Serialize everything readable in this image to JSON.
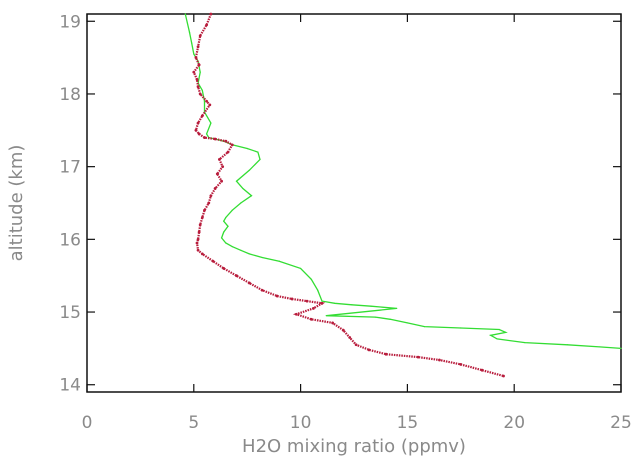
{
  "chart_data": {
    "type": "line",
    "title": "",
    "xlabel": "H2O mixing ratio (ppmv)",
    "ylabel": "altitude (km)",
    "xlim": [
      0,
      25
    ],
    "ylim": [
      13.9,
      19.1
    ],
    "xticks": [
      "0",
      "5",
      "10",
      "15",
      "20",
      "25"
    ],
    "yticks": [
      "14",
      "15",
      "16",
      "17",
      "18",
      "19"
    ],
    "grid": false,
    "legend": "none",
    "series": [
      {
        "color": "#33dd33",
        "style": "line",
        "x": [
          4.6,
          4.8,
          4.9,
          5.0,
          5.2,
          5.3,
          5.2,
          5.4,
          5.5,
          5.5,
          5.8,
          5.6,
          5.7,
          6.0,
          6.4,
          6.8,
          7.5,
          8.0,
          8.1,
          7.6,
          7.0,
          7.3,
          7.7,
          7.2,
          6.8,
          6.5,
          6.4,
          6.6,
          6.4,
          6.3,
          6.5,
          6.8,
          7.2,
          7.6,
          8.2,
          9.0,
          10.0,
          10.5,
          10.8,
          11.0,
          11.6,
          12.4,
          13.3,
          14.5,
          11.2,
          13.5,
          14.2,
          15.0,
          15.8,
          17.5,
          19.3,
          19.6,
          18.9,
          19.2,
          20.5,
          22.5,
          24.0,
          25.0
        ],
        "y": [
          19.1,
          18.85,
          18.7,
          18.55,
          18.45,
          18.3,
          18.15,
          18.05,
          17.9,
          17.75,
          17.6,
          17.45,
          17.4,
          17.38,
          17.35,
          17.3,
          17.25,
          17.2,
          17.1,
          16.95,
          16.8,
          16.7,
          16.6,
          16.5,
          16.4,
          16.3,
          16.25,
          16.18,
          16.1,
          16.02,
          15.95,
          15.9,
          15.85,
          15.8,
          15.75,
          15.7,
          15.6,
          15.45,
          15.3,
          15.15,
          15.12,
          15.1,
          15.08,
          15.05,
          14.95,
          14.93,
          14.9,
          14.85,
          14.8,
          14.78,
          14.76,
          14.72,
          14.68,
          14.63,
          14.58,
          14.55,
          14.52,
          14.5
        ]
      },
      {
        "color": "#b81c3c",
        "style": "dots",
        "x": [
          5.8,
          5.6,
          5.3,
          5.2,
          5.1,
          5.25,
          5.0,
          5.15,
          5.2,
          5.3,
          5.6,
          5.75,
          5.4,
          5.2,
          5.1,
          5.25,
          5.5,
          6.0,
          6.5,
          6.8,
          6.6,
          6.2,
          6.35,
          6.1,
          6.3,
          6.0,
          5.8,
          5.7,
          5.5,
          5.4,
          5.3,
          5.25,
          5.2,
          5.15,
          5.2,
          5.4,
          5.9,
          6.4,
          7.0,
          7.6,
          8.2,
          8.9,
          9.6,
          10.3,
          11.0,
          10.6,
          9.8,
          10.5,
          11.5,
          12.0,
          12.3,
          12.6,
          13.2,
          14.0,
          15.5,
          16.5,
          17.5,
          18.5,
          19.5
        ],
        "y": [
          19.1,
          18.95,
          18.8,
          18.65,
          18.5,
          18.4,
          18.3,
          18.2,
          18.1,
          18.0,
          17.9,
          17.85,
          17.7,
          17.6,
          17.5,
          17.45,
          17.4,
          17.38,
          17.35,
          17.3,
          17.2,
          17.1,
          17.0,
          16.9,
          16.8,
          16.7,
          16.6,
          16.5,
          16.4,
          16.3,
          16.2,
          16.1,
          16.0,
          15.95,
          15.85,
          15.8,
          15.7,
          15.6,
          15.5,
          15.4,
          15.3,
          15.22,
          15.18,
          15.15,
          15.12,
          15.05,
          14.97,
          14.9,
          14.85,
          14.75,
          14.65,
          14.55,
          14.48,
          14.42,
          14.38,
          14.34,
          14.28,
          14.2,
          14.12
        ]
      }
    ]
  }
}
